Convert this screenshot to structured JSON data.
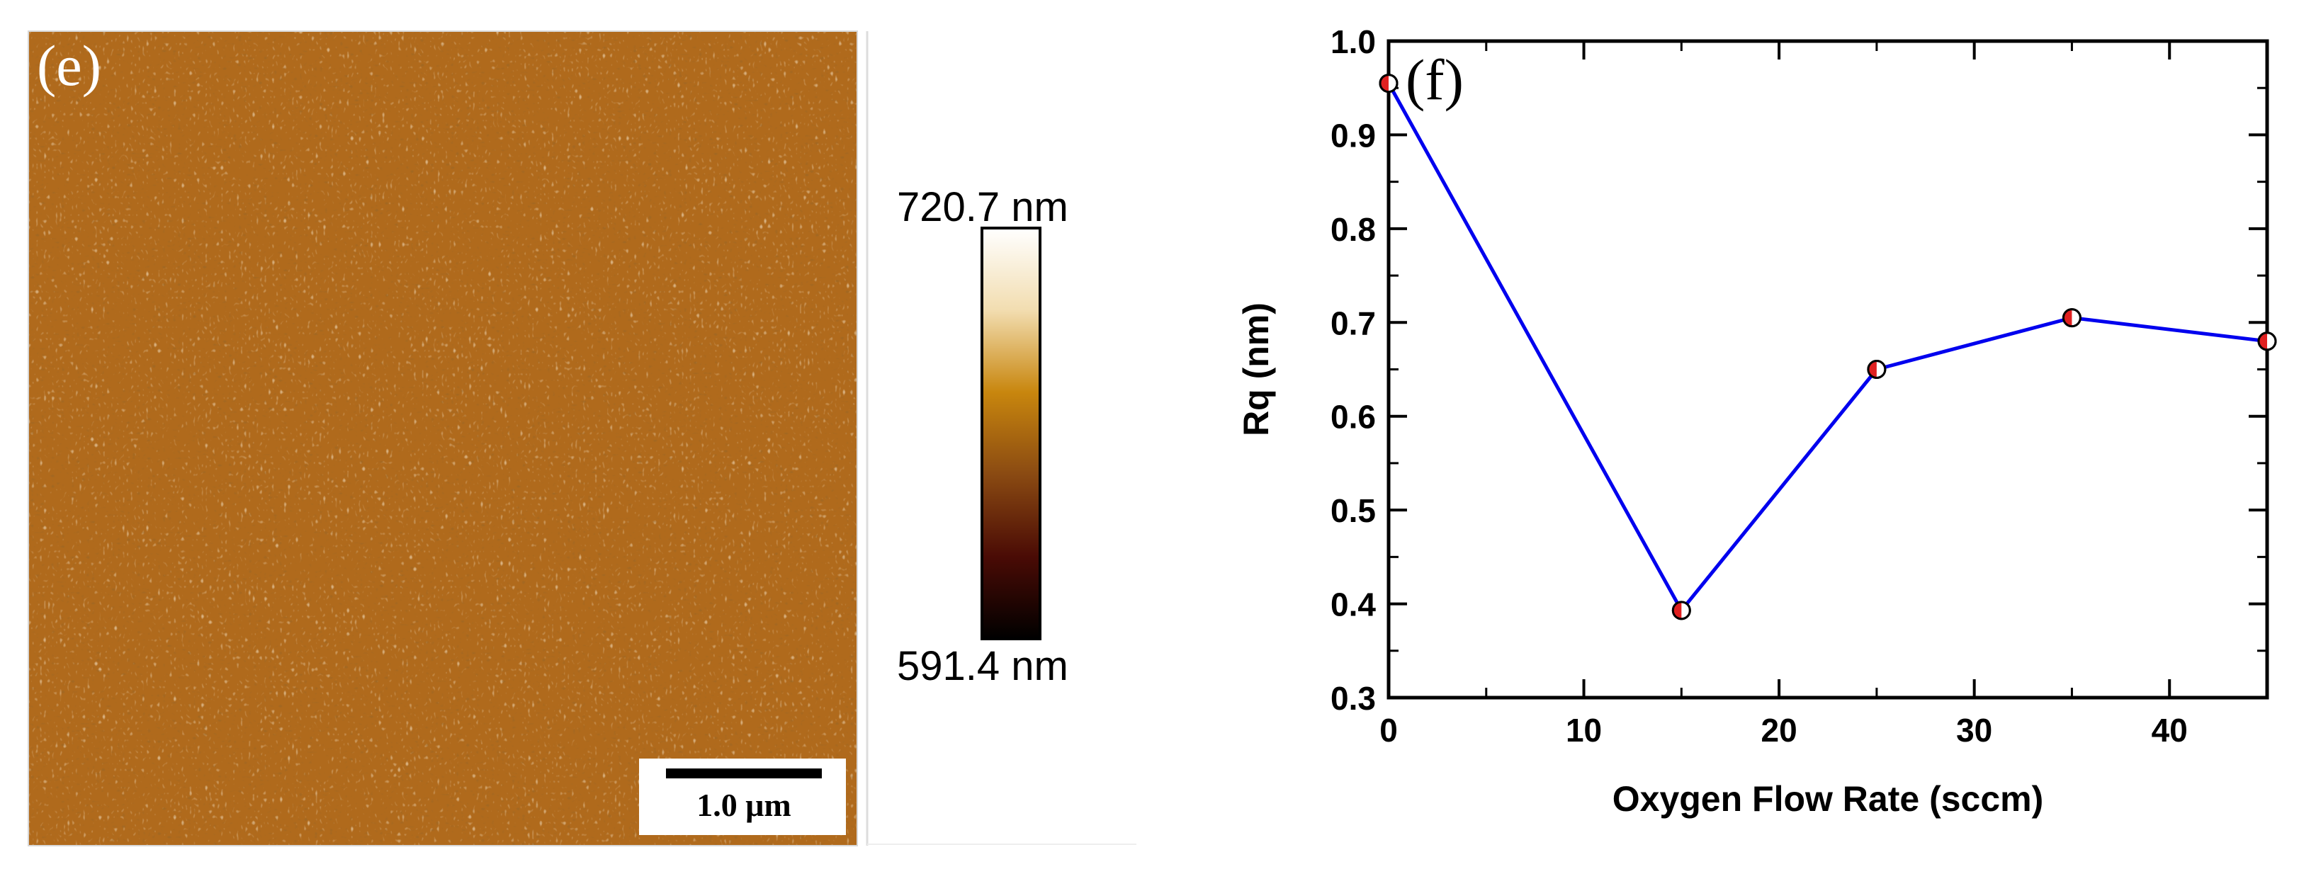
{
  "panel_e": {
    "label": "(e)",
    "scale_bar_label": "1.0 μm",
    "colorbar_max": "720.7 nm",
    "colorbar_min": "591.4 nm",
    "colorbar_stops": [
      "#ffffff",
      "#f2ddb0",
      "#c8860e",
      "#8a4a12",
      "#4a0b05",
      "#000000"
    ],
    "image_colors": {
      "base": "#b06a1c",
      "light": "#f3d79c",
      "dark": "#5a2c06"
    }
  },
  "chart_data": {
    "type": "line",
    "panel_label": "(f)",
    "xlabel": "Oxygen Flow Rate (sccm)",
    "ylabel": "Rq (nm)",
    "xlim": [
      0,
      45
    ],
    "ylim": [
      0.3,
      1.0
    ],
    "xticks": [
      0,
      10,
      20,
      30,
      40
    ],
    "xtick_labels": [
      "0",
      "10",
      "20",
      "30",
      "40"
    ],
    "yticks": [
      0.3,
      0.4,
      0.5,
      0.6,
      0.7,
      0.8,
      0.9,
      1.0
    ],
    "ytick_labels": [
      "0.3",
      "0.4",
      "0.5",
      "0.6",
      "0.7",
      "0.8",
      "0.9",
      "1.0"
    ],
    "series": [
      {
        "name": "Rq",
        "x": [
          0,
          15,
          25,
          35,
          45
        ],
        "y": [
          0.955,
          0.393,
          0.65,
          0.705,
          0.68
        ],
        "line_color": "#0000ee",
        "marker_fill": "#e02020"
      }
    ]
  }
}
